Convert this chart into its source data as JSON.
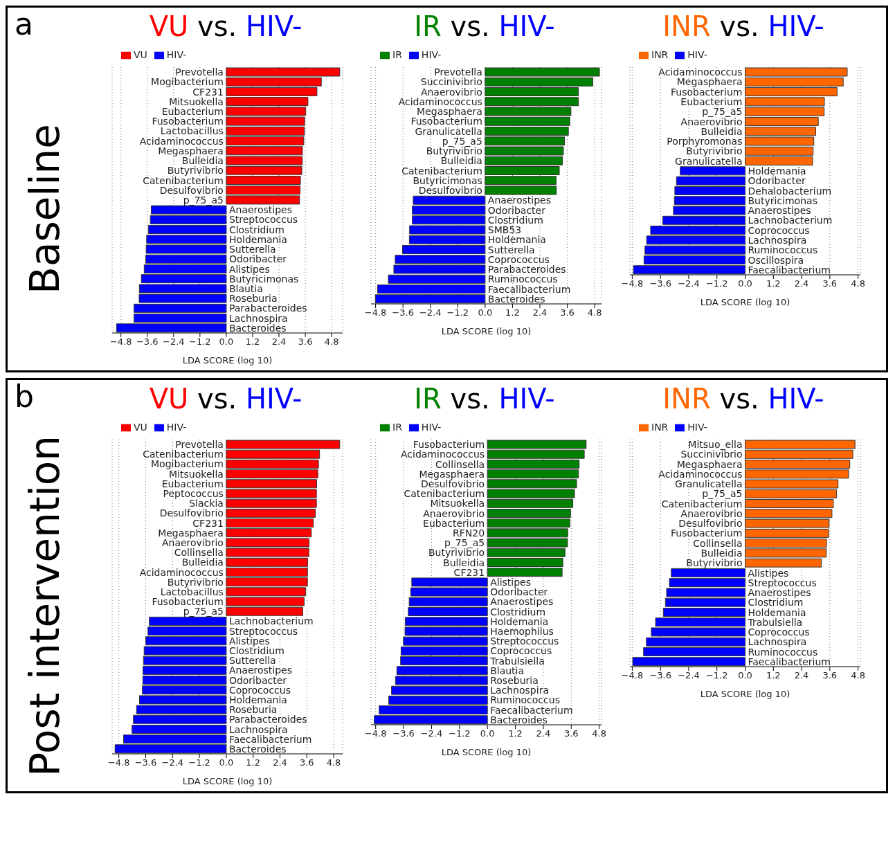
{
  "chart_data": [
    {
      "type": "bar",
      "orientation": "horizontal",
      "title": "VU vs. HIV-",
      "xlabel": "LDA SCORE (log 10)",
      "annotations": [
        "a",
        "Baseline"
      ],
      "legend": "top left",
      "grid": "x",
      "xlim": [
        -5.2,
        5.3
      ],
      "xticks": [
        {
          "value": -4.8,
          "label": "−4.8"
        },
        {
          "value": -3.6,
          "label": "−3.6"
        },
        {
          "value": -2.4,
          "label": "−2.4"
        },
        {
          "value": -1.2,
          "label": "−1.2"
        },
        {
          "value": 0,
          "label": "0.0"
        },
        {
          "value": 1.2,
          "label": "1.2"
        },
        {
          "value": 2.4,
          "label": "2.4"
        },
        {
          "value": 3.6,
          "label": "3.6"
        },
        {
          "value": 4.8,
          "label": "4.8"
        }
      ],
      "categories": [
        "Prevotella",
        "Mogibacterium",
        "CF231",
        "Mitsuokella",
        "Eubacterium",
        "Fusobacterium",
        "Lactobacillus",
        "Acidaminococcus",
        "Megasphaera",
        "Bulleidia",
        "Butyrivibrio",
        "Catenibacterium",
        "Desulfovibrio",
        "p_75_a5",
        "Anaerostipes",
        "Streptococcus",
        "Clostridium",
        "Holdemania",
        "Sutterella",
        "Odoribacter",
        "Alistipes",
        "Butyricimonas",
        "Blautia",
        "Roseburia",
        "Parabacteroides",
        "Lachnospira",
        "Bacteroides"
      ],
      "series": [
        {
          "name": "VU",
          "color": "#ff0000",
          "values": [
            5.17,
            4.33,
            4.13,
            3.72,
            3.62,
            3.57,
            3.56,
            3.53,
            3.47,
            3.46,
            3.44,
            3.38,
            3.36,
            3.34,
            null,
            null,
            null,
            null,
            null,
            null,
            null,
            null,
            null,
            null,
            null,
            null,
            null
          ]
        },
        {
          "name": "HIV-",
          "color": "#0000ff",
          "values": [
            null,
            null,
            null,
            null,
            null,
            null,
            null,
            null,
            null,
            null,
            null,
            null,
            null,
            null,
            -3.42,
            -3.46,
            -3.55,
            -3.63,
            -3.65,
            -3.67,
            -3.74,
            -3.87,
            -3.96,
            -3.97,
            -4.2,
            -4.2,
            -5.0
          ]
        }
      ]
    },
    {
      "type": "bar",
      "orientation": "horizontal",
      "title": "IR vs. HIV-",
      "xlabel": "LDA SCORE (log 10)",
      "legend": "top left",
      "grid": "x",
      "xlim": [
        -5.0,
        5.1
      ],
      "xticks": [
        {
          "value": -4.8,
          "label": "−4.8"
        },
        {
          "value": -3.6,
          "label": "−3.6"
        },
        {
          "value": -2.4,
          "label": "−2.4"
        },
        {
          "value": -1.2,
          "label": "−1.2"
        },
        {
          "value": 0,
          "label": "0.0"
        },
        {
          "value": 1.2,
          "label": "1.2"
        },
        {
          "value": 2.4,
          "label": "2.4"
        },
        {
          "value": 3.6,
          "label": "3.6"
        },
        {
          "value": 4.8,
          "label": "4.8"
        }
      ],
      "categories": [
        "Prevotella",
        "Succinivibrio",
        "Anaerovibrio",
        "Acidaminococcus",
        "Megasphaera",
        "Fusobacterium",
        "Granulicatella",
        "p_75_a5",
        "Butyrivibrio",
        "Bulleidia",
        "Catenibacterium",
        "Butyricimonas",
        "Desulfovibrio",
        "Anaerostipes",
        "Odoribacter",
        "Clostridium",
        "SMB53",
        "Holdemania",
        "Sutterella",
        "Coprococcus",
        "Parabacteroides",
        "Ruminococcus",
        "Faecalibacterium",
        "Bacteroides"
      ],
      "series": [
        {
          "name": "IR",
          "color": "#008000",
          "values": [
            5.01,
            4.72,
            4.09,
            4.09,
            3.76,
            3.71,
            3.65,
            3.48,
            3.43,
            3.39,
            3.25,
            3.11,
            3.12,
            null,
            null,
            null,
            null,
            null,
            null,
            null,
            null,
            null,
            null,
            null
          ]
        },
        {
          "name": "HIV-",
          "color": "#0000ff",
          "values": [
            null,
            null,
            null,
            null,
            null,
            null,
            null,
            null,
            null,
            null,
            null,
            null,
            null,
            -3.15,
            -3.19,
            -3.19,
            -3.31,
            -3.32,
            -3.62,
            -3.94,
            -4.0,
            -4.24,
            -4.71,
            -4.81
          ]
        }
      ]
    },
    {
      "type": "bar",
      "orientation": "horizontal",
      "title": "INR vs. HIV-",
      "xlabel": "LDA SCORE (log 10)",
      "legend": "top left",
      "grid": "x",
      "xlim": [
        -4.9,
        4.9
      ],
      "xticks": [
        {
          "value": -4.8,
          "label": "−4.8"
        },
        {
          "value": -3.6,
          "label": "−3.6"
        },
        {
          "value": -2.4,
          "label": "−2.4"
        },
        {
          "value": -1.2,
          "label": "−1.2"
        },
        {
          "value": 0,
          "label": "0.0"
        },
        {
          "value": 1.2,
          "label": "1.2"
        },
        {
          "value": 2.4,
          "label": "2.4"
        },
        {
          "value": 3.6,
          "label": "3.6"
        },
        {
          "value": 4.8,
          "label": "4.8"
        }
      ],
      "categories": [
        "Acidaminococcus",
        "Megasphaera",
        "Fusobacterium",
        "Eubacterium",
        "p_75_a5",
        "Anaerovibrio",
        "Bulleidia",
        "Porphyromonas",
        "Butyrivibrio",
        "Granulicatella",
        "Holdemania",
        "Odoribacter",
        "Dehalobacterium",
        "Butyricimonas",
        "Anaerostipes",
        "Lachnobacterium",
        "Coprococcus",
        "Lachnospira",
        "Ruminococcus",
        "Oscillospira",
        "Faecalibacterium"
      ],
      "series": [
        {
          "name": "INR",
          "color": "#ff6600",
          "values": [
            4.34,
            4.17,
            3.91,
            3.37,
            3.36,
            3.11,
            3.0,
            2.92,
            2.89,
            2.87,
            null,
            null,
            null,
            null,
            null,
            null,
            null,
            null,
            null,
            null,
            null
          ]
        },
        {
          "name": "HIV-",
          "color": "#0000ff",
          "values": [
            null,
            null,
            null,
            null,
            null,
            null,
            null,
            null,
            null,
            null,
            -2.76,
            -2.92,
            -2.99,
            -3.01,
            -3.05,
            -3.5,
            -4.02,
            -4.19,
            -4.26,
            -4.3,
            -4.75
          ]
        }
      ]
    },
    {
      "type": "bar",
      "orientation": "horizontal",
      "title": "VU vs. HIV-",
      "xlabel": "LDA SCORE (log 10)",
      "annotations": [
        "b",
        "Post intervention"
      ],
      "legend": "top left",
      "grid": "x",
      "xlim": [
        -5.1,
        5.2
      ],
      "xticks": [
        {
          "value": -4.8,
          "label": "−4.8"
        },
        {
          "value": -3.6,
          "label": "−3.6"
        },
        {
          "value": -2.4,
          "label": "−2.4"
        },
        {
          "value": -1.2,
          "label": "−1.2"
        },
        {
          "value": 0,
          "label": "0.0"
        },
        {
          "value": 1.2,
          "label": "1.2"
        },
        {
          "value": 2.4,
          "label": "2.4"
        },
        {
          "value": 3.6,
          "label": "3.6"
        },
        {
          "value": 4.8,
          "label": "4.8"
        }
      ],
      "categories": [
        "Prevotella",
        "Catenibacterium",
        "Mogibacterium",
        "Mitsuokella",
        "Eubacterium",
        "Peptococcus",
        "Slackia",
        "Desulfovibrio",
        "CF231",
        "Megasphaera",
        "Anaerovibrio",
        "Collinsella",
        "Bulleidia",
        "Acidaminococcus",
        "Butyrivibrio",
        "Lactobacillus",
        "Fusobacterium",
        "p_75_a5",
        "Lachnobacterium",
        "Streptococcus",
        "Alistipes",
        "Clostridium",
        "Sutterella",
        "Anaerostipes",
        "Odoribacter",
        "Coprococcus",
        "Holdemania",
        "Roseburia",
        "Parabacteroides",
        "Lachnospira",
        "Faecalibacterium",
        "Bacteroides"
      ],
      "series": [
        {
          "name": "VU",
          "color": "#ff0000",
          "values": [
            5.07,
            4.17,
            4.12,
            4.09,
            4.04,
            4.03,
            4.03,
            3.98,
            3.89,
            3.8,
            3.7,
            3.69,
            3.64,
            3.63,
            3.63,
            3.55,
            3.48,
            3.42,
            null,
            null,
            null,
            null,
            null,
            null,
            null,
            null,
            null,
            null,
            null,
            null,
            null,
            null
          ]
        },
        {
          "name": "HIV-",
          "color": "#0000ff",
          "values": [
            null,
            null,
            null,
            null,
            null,
            null,
            null,
            null,
            null,
            null,
            null,
            null,
            null,
            null,
            null,
            null,
            null,
            null,
            -3.44,
            -3.5,
            -3.6,
            -3.67,
            -3.7,
            -3.72,
            -3.73,
            -3.75,
            -3.88,
            -4.01,
            -4.15,
            -4.21,
            -4.59,
            -4.97
          ]
        }
      ]
    },
    {
      "type": "bar",
      "orientation": "horizontal",
      "title": "IR vs. HIV-",
      "xlabel": "LDA SCORE (log 10)",
      "legend": "top left",
      "grid": "x",
      "xlim": [
        -5.0,
        4.9
      ],
      "xticks": [
        {
          "value": -4.8,
          "label": "−4.8"
        },
        {
          "value": -3.6,
          "label": "−3.6"
        },
        {
          "value": -2.4,
          "label": "−2.4"
        },
        {
          "value": -1.2,
          "label": "−1.2"
        },
        {
          "value": 0,
          "label": "0.0"
        },
        {
          "value": 1.2,
          "label": "1.2"
        },
        {
          "value": 2.4,
          "label": "2.4"
        },
        {
          "value": 3.6,
          "label": "3.6"
        },
        {
          "value": 4.8,
          "label": "4.8"
        }
      ],
      "categories": [
        "Fusobacterium",
        "Acidaminococcus",
        "Collinsella",
        "Megasphaera",
        "Desulfovibrio",
        "Catenibacterium",
        "Mitsuokella",
        "Anaerovibrio",
        "Eubacterium",
        "RFN20",
        "p_75_a5",
        "Butyrivibrio",
        "Bulleidia",
        "CF231",
        "Alistipes",
        "Odoribacter",
        "Anaerostipes",
        "Clostridium",
        "Holdemania",
        "Haemophilus",
        "Streptococcus",
        "Coprococcus",
        "Trabulsiella",
        "Blautia",
        "Roseburia",
        "Lachnospira",
        "Ruminococcus",
        "Faecalibacterium",
        "Bacteroides"
      ],
      "series": [
        {
          "name": "IR",
          "color": "#008000",
          "values": [
            4.24,
            4.16,
            3.94,
            3.91,
            3.83,
            3.74,
            3.67,
            3.57,
            3.54,
            3.45,
            3.44,
            3.33,
            3.24,
            3.21,
            null,
            null,
            null,
            null,
            null,
            null,
            null,
            null,
            null,
            null,
            null,
            null,
            null,
            null,
            null
          ]
        },
        {
          "name": "HIV-",
          "color": "#0000ff",
          "values": [
            null,
            null,
            null,
            null,
            null,
            null,
            null,
            null,
            null,
            null,
            null,
            null,
            null,
            null,
            -3.25,
            -3.29,
            -3.36,
            -3.4,
            -3.53,
            -3.54,
            -3.61,
            -3.71,
            -3.73,
            -3.89,
            -3.95,
            -4.12,
            -4.24,
            -4.65,
            -4.86
          ]
        }
      ]
    },
    {
      "type": "bar",
      "orientation": "horizontal",
      "title": "INR vs. HIV-",
      "xlabel": "LDA SCORE (log 10)",
      "legend": "top left",
      "grid": "x",
      "xlim": [
        -4.9,
        4.9
      ],
      "xticks": [
        {
          "value": -4.8,
          "label": "−4.8"
        },
        {
          "value": -3.6,
          "label": "−3.6"
        },
        {
          "value": -2.4,
          "label": "−2.4"
        },
        {
          "value": -1.2,
          "label": "−1.2"
        },
        {
          "value": 0,
          "label": "0.0"
        },
        {
          "value": 1.2,
          "label": "1.2"
        },
        {
          "value": 2.4,
          "label": "2.4"
        },
        {
          "value": 3.6,
          "label": "3.6"
        },
        {
          "value": 4.8,
          "label": "4.8"
        }
      ],
      "categories": [
        "Mitsuo_ella",
        "Succinivibrio",
        "Megasphaera",
        "Acidaminococcus",
        "Granulicatella",
        "p_75_a5",
        "Catenibacterium",
        "Anaerovibrio",
        "Desulfovibrio",
        "Fusobacterium",
        "Collinsella",
        "Bulleidia",
        "Butyrivibrio",
        "Alistipes",
        "Streptococcus",
        "Anaerostipes",
        "Clostridium",
        "Holdemania",
        "Trabulsiella",
        "Coprococcus",
        "Lachnospira",
        "Ruminococcus",
        "Faecalibacterium"
      ],
      "series": [
        {
          "name": "INR",
          "color": "#ff6600",
          "values": [
            4.67,
            4.58,
            4.45,
            4.4,
            3.95,
            3.89,
            3.75,
            3.69,
            3.57,
            3.55,
            3.46,
            3.45,
            3.24,
            null,
            null,
            null,
            null,
            null,
            null,
            null,
            null,
            null,
            null
          ]
        },
        {
          "name": "HIV-",
          "color": "#0000ff",
          "values": [
            null,
            null,
            null,
            null,
            null,
            null,
            null,
            null,
            null,
            null,
            null,
            null,
            null,
            -3.14,
            -3.22,
            -3.34,
            -3.39,
            -3.48,
            -3.81,
            -3.99,
            -4.2,
            -4.32,
            -4.78
          ]
        }
      ]
    }
  ]
}
